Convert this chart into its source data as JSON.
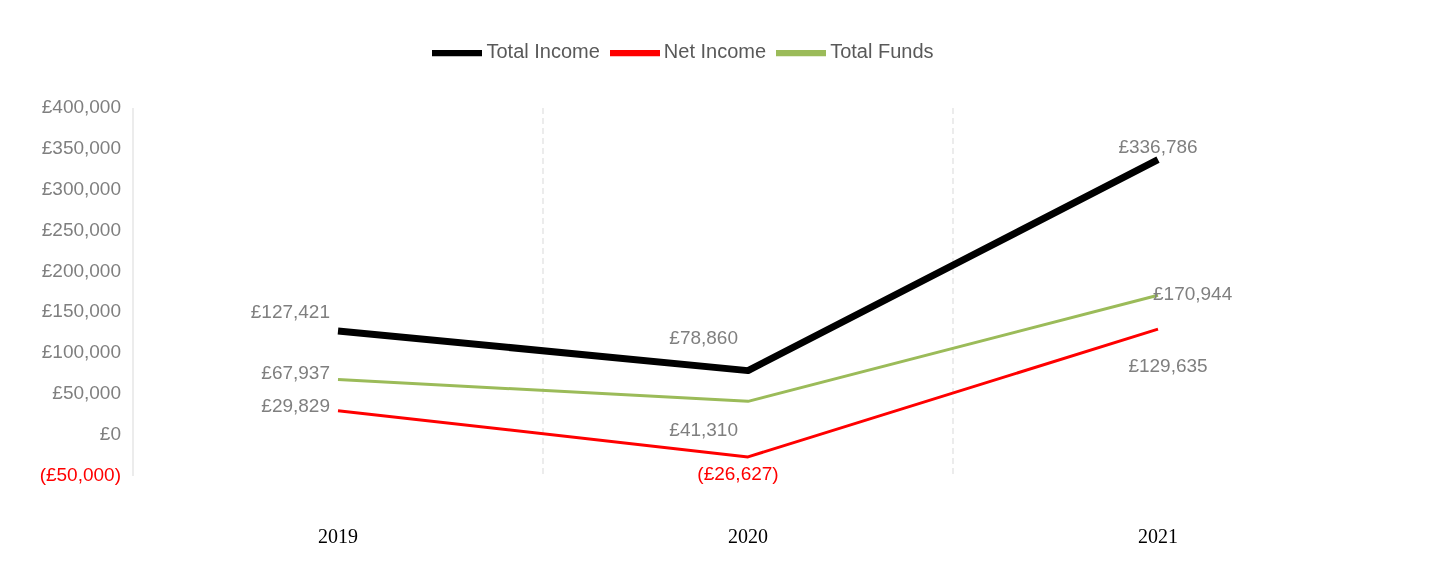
{
  "chart_data": {
    "type": "line",
    "categories": [
      "2019",
      "2020",
      "2021"
    ],
    "series": [
      {
        "name": "Total Income",
        "color": "#000000",
        "values": [
          127421,
          78860,
          336786
        ],
        "value_labels": [
          "£127,421",
          "£78,860",
          "£336,786"
        ]
      },
      {
        "name": "Net Income",
        "color": "#ff0000",
        "values": [
          29829,
          -26627,
          129635
        ],
        "value_labels": [
          "£29,829",
          "(£26,627)",
          "£129,635"
        ]
      },
      {
        "name": "Total Funds",
        "color": "#9bbb59",
        "values": [
          67937,
          41310,
          170944
        ],
        "value_labels": [
          "£67,937",
          "£41,310",
          "£170,944"
        ]
      }
    ],
    "ylim": [
      -50000,
      400000
    ],
    "yticks": [
      {
        "value": -50000,
        "label": "(£50,000)"
      },
      {
        "value": 0,
        "label": "£0"
      },
      {
        "value": 50000,
        "label": "£50,000"
      },
      {
        "value": 100000,
        "label": "£100,000"
      },
      {
        "value": 150000,
        "label": "£150,000"
      },
      {
        "value": 200000,
        "label": "£200,000"
      },
      {
        "value": 250000,
        "label": "£250,000"
      },
      {
        "value": 300000,
        "label": "£300,000"
      },
      {
        "value": 350000,
        "label": "£350,000"
      },
      {
        "value": 400000,
        "label": "£400,000"
      }
    ],
    "grid": "x",
    "legend": "top",
    "marker": "none",
    "line_style": "solid"
  }
}
